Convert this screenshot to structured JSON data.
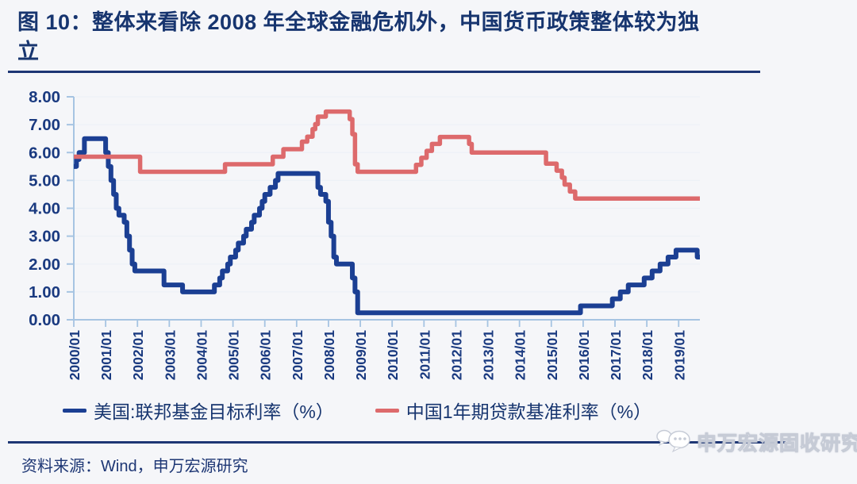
{
  "title": {
    "line1": "图 10：整体来看除 2008 年全球金融危机外，中国货币政策整体较为独",
    "line2": "立"
  },
  "source_note": "资料来源：Wind，申万宏源研究",
  "watermark": {
    "icon": "wechat-bubbles-icon",
    "label": "申万宏源固收研究"
  },
  "legend": [
    {
      "label": "美国:联邦基金目标利率（%）",
      "color": "#1b3f93"
    },
    {
      "label": "中国1年期贷款基准利率（%）",
      "color": "#dd6a6c"
    }
  ],
  "colors": {
    "title_navy": "#17356f",
    "rule_navy": "#1d3674",
    "axis_light_blue": "#a6c4e2",
    "grid": "#edf1f7",
    "us_line_blue": "#1b3f93",
    "china_line_red": "#dd6a6c",
    "tick_label_navy": "#1a3a80",
    "background": "#f5f6f9"
  },
  "chart_data": {
    "type": "line",
    "style": "step",
    "title": "",
    "xlabel": "",
    "ylabel": "",
    "x_start": "2000/01",
    "x_end": "2019/09",
    "ylim": [
      0,
      8
    ],
    "y_tick_labels": [
      "0.00",
      "1.00",
      "2.00",
      "3.00",
      "4.00",
      "5.00",
      "6.00",
      "7.00",
      "8.00"
    ],
    "x_tick_labels": [
      "2000/01",
      "2001/01",
      "2002/01",
      "2003/01",
      "2004/01",
      "2005/01",
      "2006/01",
      "2007/01",
      "2008/01",
      "2009/01",
      "2010/01",
      "2011/01",
      "2012/01",
      "2013/01",
      "2014/01",
      "2015/01",
      "2016/01",
      "2017/01",
      "2018/01",
      "2019/01"
    ],
    "grid": false,
    "legend_position": "bottom",
    "series": [
      {
        "name": "美国:联邦基金目标利率（%）",
        "color": "#1b3f93",
        "steps": [
          [
            "2000/01",
            5.5
          ],
          [
            "2000/02",
            5.75
          ],
          [
            "2000/03",
            6.0
          ],
          [
            "2000/05",
            6.5
          ],
          [
            "2001/01",
            6.0
          ],
          [
            "2001/02",
            5.5
          ],
          [
            "2001/03",
            5.0
          ],
          [
            "2001/04",
            4.5
          ],
          [
            "2001/05",
            4.0
          ],
          [
            "2001/06",
            3.75
          ],
          [
            "2001/08",
            3.5
          ],
          [
            "2001/09",
            3.0
          ],
          [
            "2001/10",
            2.5
          ],
          [
            "2001/11",
            2.0
          ],
          [
            "2001/12",
            1.75
          ],
          [
            "2002/11",
            1.25
          ],
          [
            "2003/06",
            1.0
          ],
          [
            "2004/06",
            1.25
          ],
          [
            "2004/08",
            1.5
          ],
          [
            "2004/09",
            1.75
          ],
          [
            "2004/11",
            2.0
          ],
          [
            "2004/12",
            2.25
          ],
          [
            "2005/02",
            2.5
          ],
          [
            "2005/03",
            2.75
          ],
          [
            "2005/05",
            3.0
          ],
          [
            "2005/06",
            3.25
          ],
          [
            "2005/08",
            3.5
          ],
          [
            "2005/09",
            3.75
          ],
          [
            "2005/11",
            4.0
          ],
          [
            "2005/12",
            4.25
          ],
          [
            "2006/01",
            4.5
          ],
          [
            "2006/03",
            4.75
          ],
          [
            "2006/05",
            5.0
          ],
          [
            "2006/06",
            5.25
          ],
          [
            "2007/09",
            4.75
          ],
          [
            "2007/10",
            4.5
          ],
          [
            "2007/12",
            4.25
          ],
          [
            "2008/01",
            3.5
          ],
          [
            "2008/02",
            3.0
          ],
          [
            "2008/03",
            2.25
          ],
          [
            "2008/04",
            2.0
          ],
          [
            "2008/10",
            1.5
          ],
          [
            "2008/11",
            1.0
          ],
          [
            "2008/12",
            0.25
          ],
          [
            "2015/12",
            0.5
          ],
          [
            "2016/12",
            0.75
          ],
          [
            "2017/03",
            1.0
          ],
          [
            "2017/06",
            1.25
          ],
          [
            "2017/12",
            1.5
          ],
          [
            "2018/03",
            1.75
          ],
          [
            "2018/06",
            2.0
          ],
          [
            "2018/09",
            2.25
          ],
          [
            "2018/12",
            2.5
          ],
          [
            "2019/08",
            2.25
          ]
        ]
      },
      {
        "name": "中国1年期贷款基准利率（%）",
        "color": "#dd6a6c",
        "steps": [
          [
            "2000/01",
            5.85
          ],
          [
            "2002/02",
            5.31
          ],
          [
            "2004/10",
            5.58
          ],
          [
            "2006/04",
            5.85
          ],
          [
            "2006/08",
            6.12
          ],
          [
            "2007/03",
            6.39
          ],
          [
            "2007/05",
            6.57
          ],
          [
            "2007/07",
            6.84
          ],
          [
            "2007/08",
            7.02
          ],
          [
            "2007/09",
            7.29
          ],
          [
            "2007/12",
            7.47
          ],
          [
            "2008/09",
            7.2
          ],
          [
            "2008/10",
            6.66
          ],
          [
            "2008/11",
            5.58
          ],
          [
            "2008/12",
            5.31
          ],
          [
            "2010/10",
            5.56
          ],
          [
            "2010/12",
            5.81
          ],
          [
            "2011/02",
            6.06
          ],
          [
            "2011/04",
            6.31
          ],
          [
            "2011/07",
            6.56
          ],
          [
            "2012/06",
            6.31
          ],
          [
            "2012/07",
            6.0
          ],
          [
            "2014/11",
            5.6
          ],
          [
            "2015/03",
            5.35
          ],
          [
            "2015/05",
            5.1
          ],
          [
            "2015/06",
            4.85
          ],
          [
            "2015/08",
            4.6
          ],
          [
            "2015/10",
            4.35
          ]
        ]
      }
    ]
  }
}
